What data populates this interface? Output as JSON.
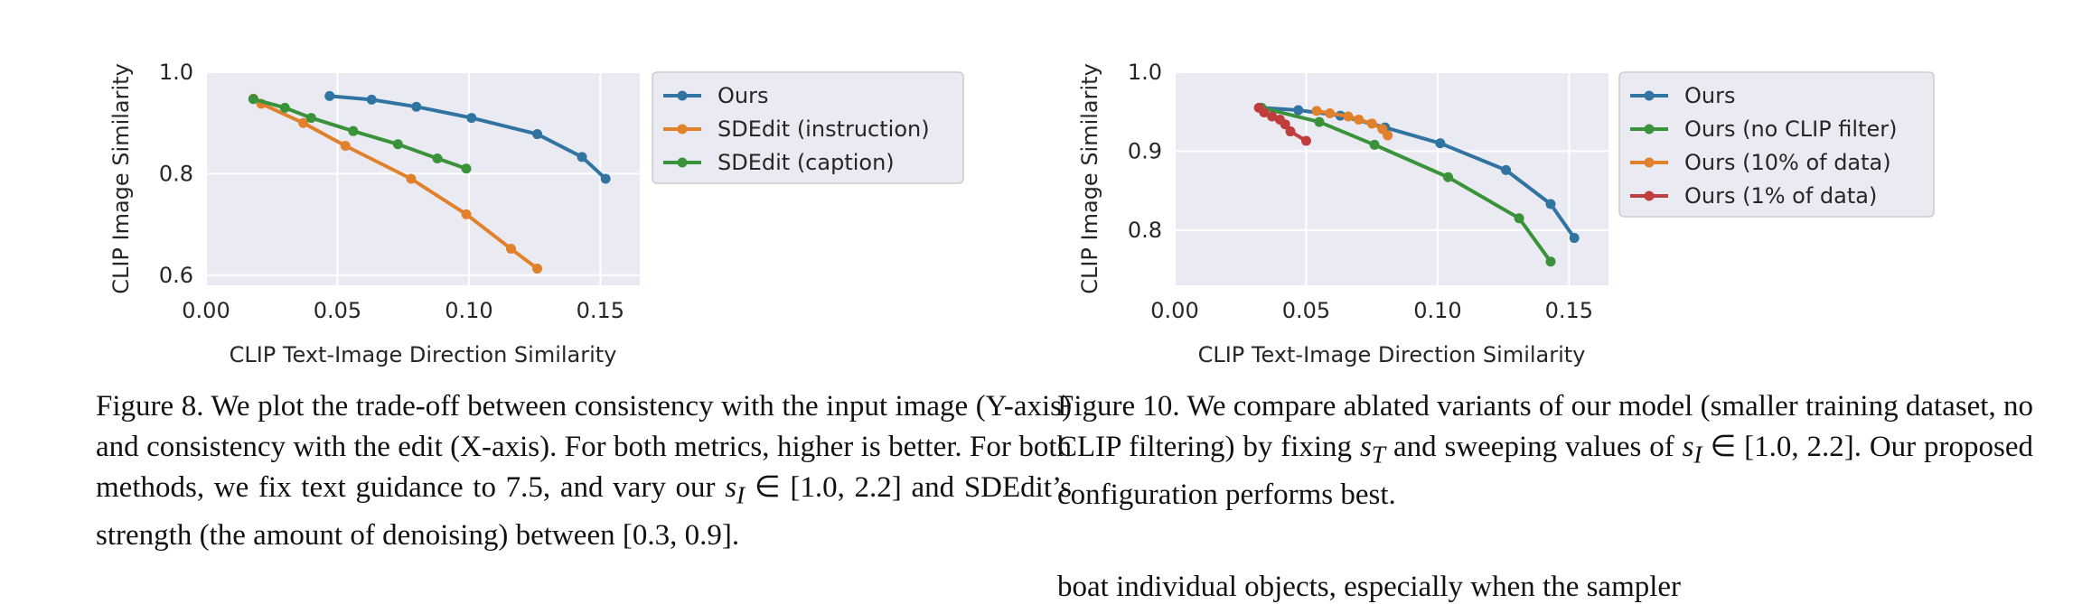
{
  "figures": [
    {
      "id": "fig8",
      "caption_label": "Figure 8.",
      "caption_parts": [
        {
          "t": "text",
          "v": " We plot the trade-off between consistency with the input image (Y-axis) and consistency with the edit (X-axis).  For both metrics, higher is better.  For both methods, we fix text guidance to 7.5, and vary our "
        },
        {
          "t": "math",
          "v": "s"
        },
        {
          "t": "sub",
          "v": "I"
        },
        {
          "t": "text",
          "v": " ∈ [1.0, 2.2] and SDEdit’s strength (the amount of denoising) between [0.3, 0.9]."
        }
      ]
    },
    {
      "id": "fig10",
      "caption_label": "Figure 10.",
      "caption_parts": [
        {
          "t": "text",
          "v": "  We compare ablated variants of our model (smaller training dataset, no CLIP filtering) by fixing "
        },
        {
          "t": "math",
          "v": "s"
        },
        {
          "t": "sub",
          "v": "T"
        },
        {
          "t": "text",
          "v": " and sweeping values of "
        },
        {
          "t": "math",
          "v": "s"
        },
        {
          "t": "sub",
          "v": "I"
        },
        {
          "t": "text",
          "v": " ∈ [1.0, 2.2]. Our proposed configuration performs best."
        }
      ]
    }
  ],
  "cut_text": "boat individual objects, especially when the sampler",
  "chart_data": [
    {
      "type": "line",
      "xlabel": "CLIP Text-Image Direction Similarity",
      "ylabel": "CLIP Image Similarity",
      "xlim": [
        0.0,
        0.165
      ],
      "ylim": [
        0.58,
        1.0
      ],
      "xticks": [
        "0.00",
        "0.05",
        "0.10",
        "0.15"
      ],
      "yticks": [
        "0.6",
        "0.8",
        "1.0"
      ],
      "grid": true,
      "legend_position": "outside-right",
      "series": [
        {
          "name": "Ours",
          "color": "#3274a1",
          "x": [
            0.047,
            0.063,
            0.08,
            0.101,
            0.126,
            0.143,
            0.152
          ],
          "y": [
            0.953,
            0.946,
            0.932,
            0.91,
            0.878,
            0.833,
            0.79
          ]
        },
        {
          "name": "SDEdit (instruction)",
          "color": "#e1812c",
          "x": [
            0.018,
            0.021,
            0.037,
            0.053,
            0.078,
            0.099,
            0.116,
            0.126
          ],
          "y": [
            0.948,
            0.938,
            0.9,
            0.855,
            0.79,
            0.72,
            0.652,
            0.613
          ]
        },
        {
          "name": "SDEdit (caption)",
          "color": "#3a923a",
          "x": [
            0.018,
            0.03,
            0.04,
            0.056,
            0.073,
            0.088,
            0.099
          ],
          "y": [
            0.947,
            0.93,
            0.91,
            0.884,
            0.858,
            0.83,
            0.81
          ]
        }
      ]
    },
    {
      "type": "line",
      "xlabel": "CLIP Text-Image Direction Similarity",
      "ylabel": "CLIP Image Similarity",
      "xlim": [
        0.0,
        0.165
      ],
      "ylim": [
        0.73,
        1.0
      ],
      "xticks": [
        "0.00",
        "0.05",
        "0.10",
        "0.15"
      ],
      "yticks": [
        "0.8",
        "0.9",
        "1.0"
      ],
      "grid": true,
      "legend_position": "outside-right",
      "series": [
        {
          "name": "Ours",
          "color": "#3274a1",
          "x": [
            0.033,
            0.047,
            0.063,
            0.08,
            0.101,
            0.126,
            0.143,
            0.152
          ],
          "y": [
            0.955,
            0.952,
            0.945,
            0.93,
            0.91,
            0.876,
            0.833,
            0.79
          ]
        },
        {
          "name": "Ours (no CLIP filter)",
          "color": "#3a923a",
          "x": [
            0.033,
            0.055,
            0.076,
            0.104,
            0.131,
            0.143
          ],
          "y": [
            0.955,
            0.937,
            0.908,
            0.867,
            0.815,
            0.76
          ]
        },
        {
          "name": "Ours (10% of data)",
          "color": "#e1812c",
          "x": [
            0.054,
            0.059,
            0.066,
            0.07,
            0.075,
            0.079,
            0.081
          ],
          "y": [
            0.951,
            0.948,
            0.944,
            0.94,
            0.935,
            0.928,
            0.92
          ]
        },
        {
          "name": "Ours (1% of data)",
          "color": "#c03d3e",
          "x": [
            0.032,
            0.034,
            0.037,
            0.04,
            0.042,
            0.044,
            0.05
          ],
          "y": [
            0.955,
            0.949,
            0.944,
            0.94,
            0.934,
            0.925,
            0.913
          ]
        }
      ]
    }
  ]
}
